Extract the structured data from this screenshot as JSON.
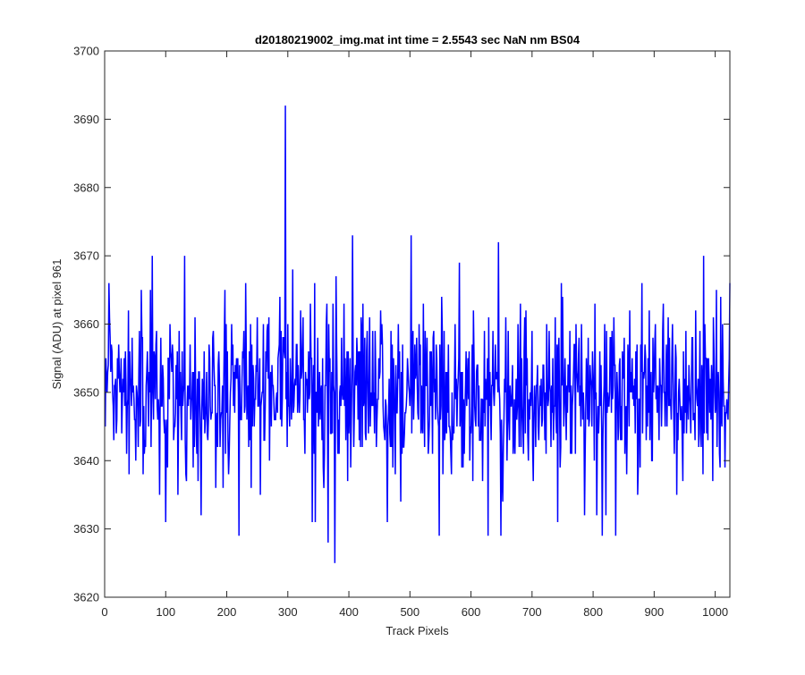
{
  "chart_data": {
    "type": "line",
    "title": "d20180219002_img.mat int time = 2.5543 sec  NaN nm BS04",
    "xlabel": "Track Pixels",
    "ylabel": "Signal (ADU) at pixel 961",
    "xlim": [
      0,
      1024
    ],
    "ylim": [
      3620,
      3700
    ],
    "xticks": [
      0,
      100,
      200,
      300,
      400,
      500,
      600,
      700,
      800,
      900,
      1000
    ],
    "yticks": [
      3620,
      3630,
      3640,
      3650,
      3660,
      3670,
      3680,
      3690,
      3700
    ],
    "grid": false,
    "legend": "none",
    "series": [
      {
        "color": "#0000ff",
        "x_start": 1,
        "x_step": 1,
        "n_points": 1024,
        "noise_sigma": 6,
        "mean": 3650,
        "notable_points": [
          {
            "x": 296,
            "y": 3692
          },
          {
            "x": 377,
            "y": 3625
          },
          {
            "x": 366,
            "y": 3628
          },
          {
            "x": 406,
            "y": 3673
          },
          {
            "x": 502,
            "y": 3673
          },
          {
            "x": 645,
            "y": 3672
          },
          {
            "x": 220,
            "y": 3629
          },
          {
            "x": 548,
            "y": 3629
          },
          {
            "x": 628,
            "y": 3629
          },
          {
            "x": 649,
            "y": 3629
          },
          {
            "x": 815,
            "y": 3629
          },
          {
            "x": 837,
            "y": 3629
          },
          {
            "x": 78,
            "y": 3670
          },
          {
            "x": 131,
            "y": 3670
          },
          {
            "x": 981,
            "y": 3670
          },
          {
            "x": 340,
            "y": 3631
          },
          {
            "x": 345,
            "y": 3631
          },
          {
            "x": 463,
            "y": 3631
          },
          {
            "x": 100,
            "y": 3631
          },
          {
            "x": 1024,
            "y": 3666
          }
        ]
      }
    ]
  }
}
